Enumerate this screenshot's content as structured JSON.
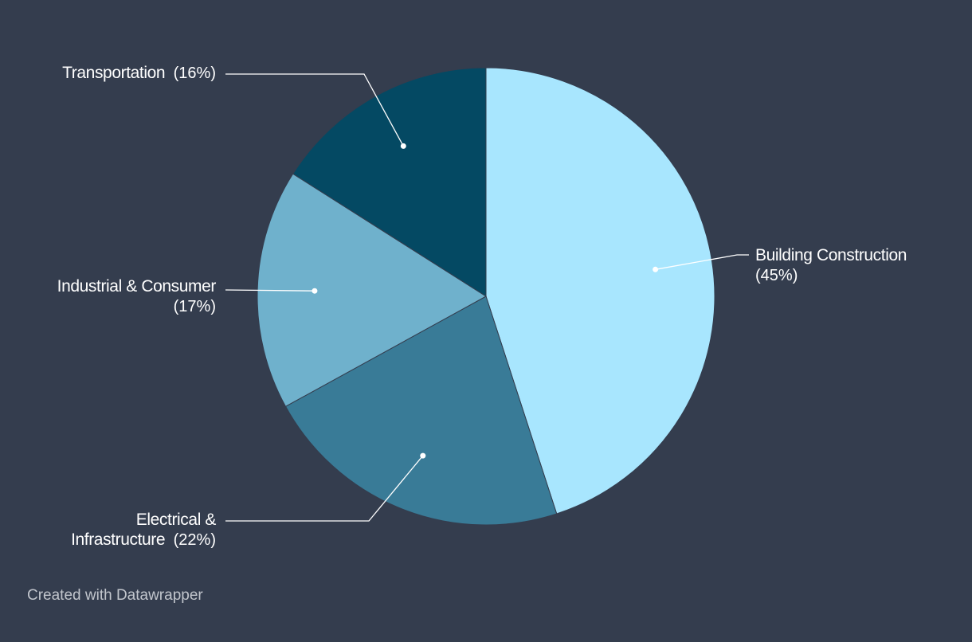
{
  "chart_data": {
    "type": "pie",
    "slices": [
      {
        "label": "Building Construction",
        "value": 45,
        "pct_label": "(45%)",
        "color": "#a8e6fe"
      },
      {
        "label": "Electrical & Infrastructure",
        "label_lines": [
          "Electrical &",
          "Infrastructure"
        ],
        "value": 22,
        "pct_label": "(22%)",
        "color": "#397b97"
      },
      {
        "label": "Industrial & Consumer",
        "value": 17,
        "pct_label": "(17%)",
        "color": "#6fb1cc"
      },
      {
        "label": "Transportation",
        "value": 16,
        "pct_label": "(16%)",
        "color": "#044963"
      }
    ],
    "start": "12 o'clock",
    "direction": "clockwise",
    "legend": "none"
  },
  "footer": {
    "credit": "Created with Datawrapper"
  },
  "colors": {
    "background": "#343d4e",
    "label_text": "#ffffff",
    "leader_line": "#ffffff",
    "credit_text": "#c1c5cc"
  }
}
